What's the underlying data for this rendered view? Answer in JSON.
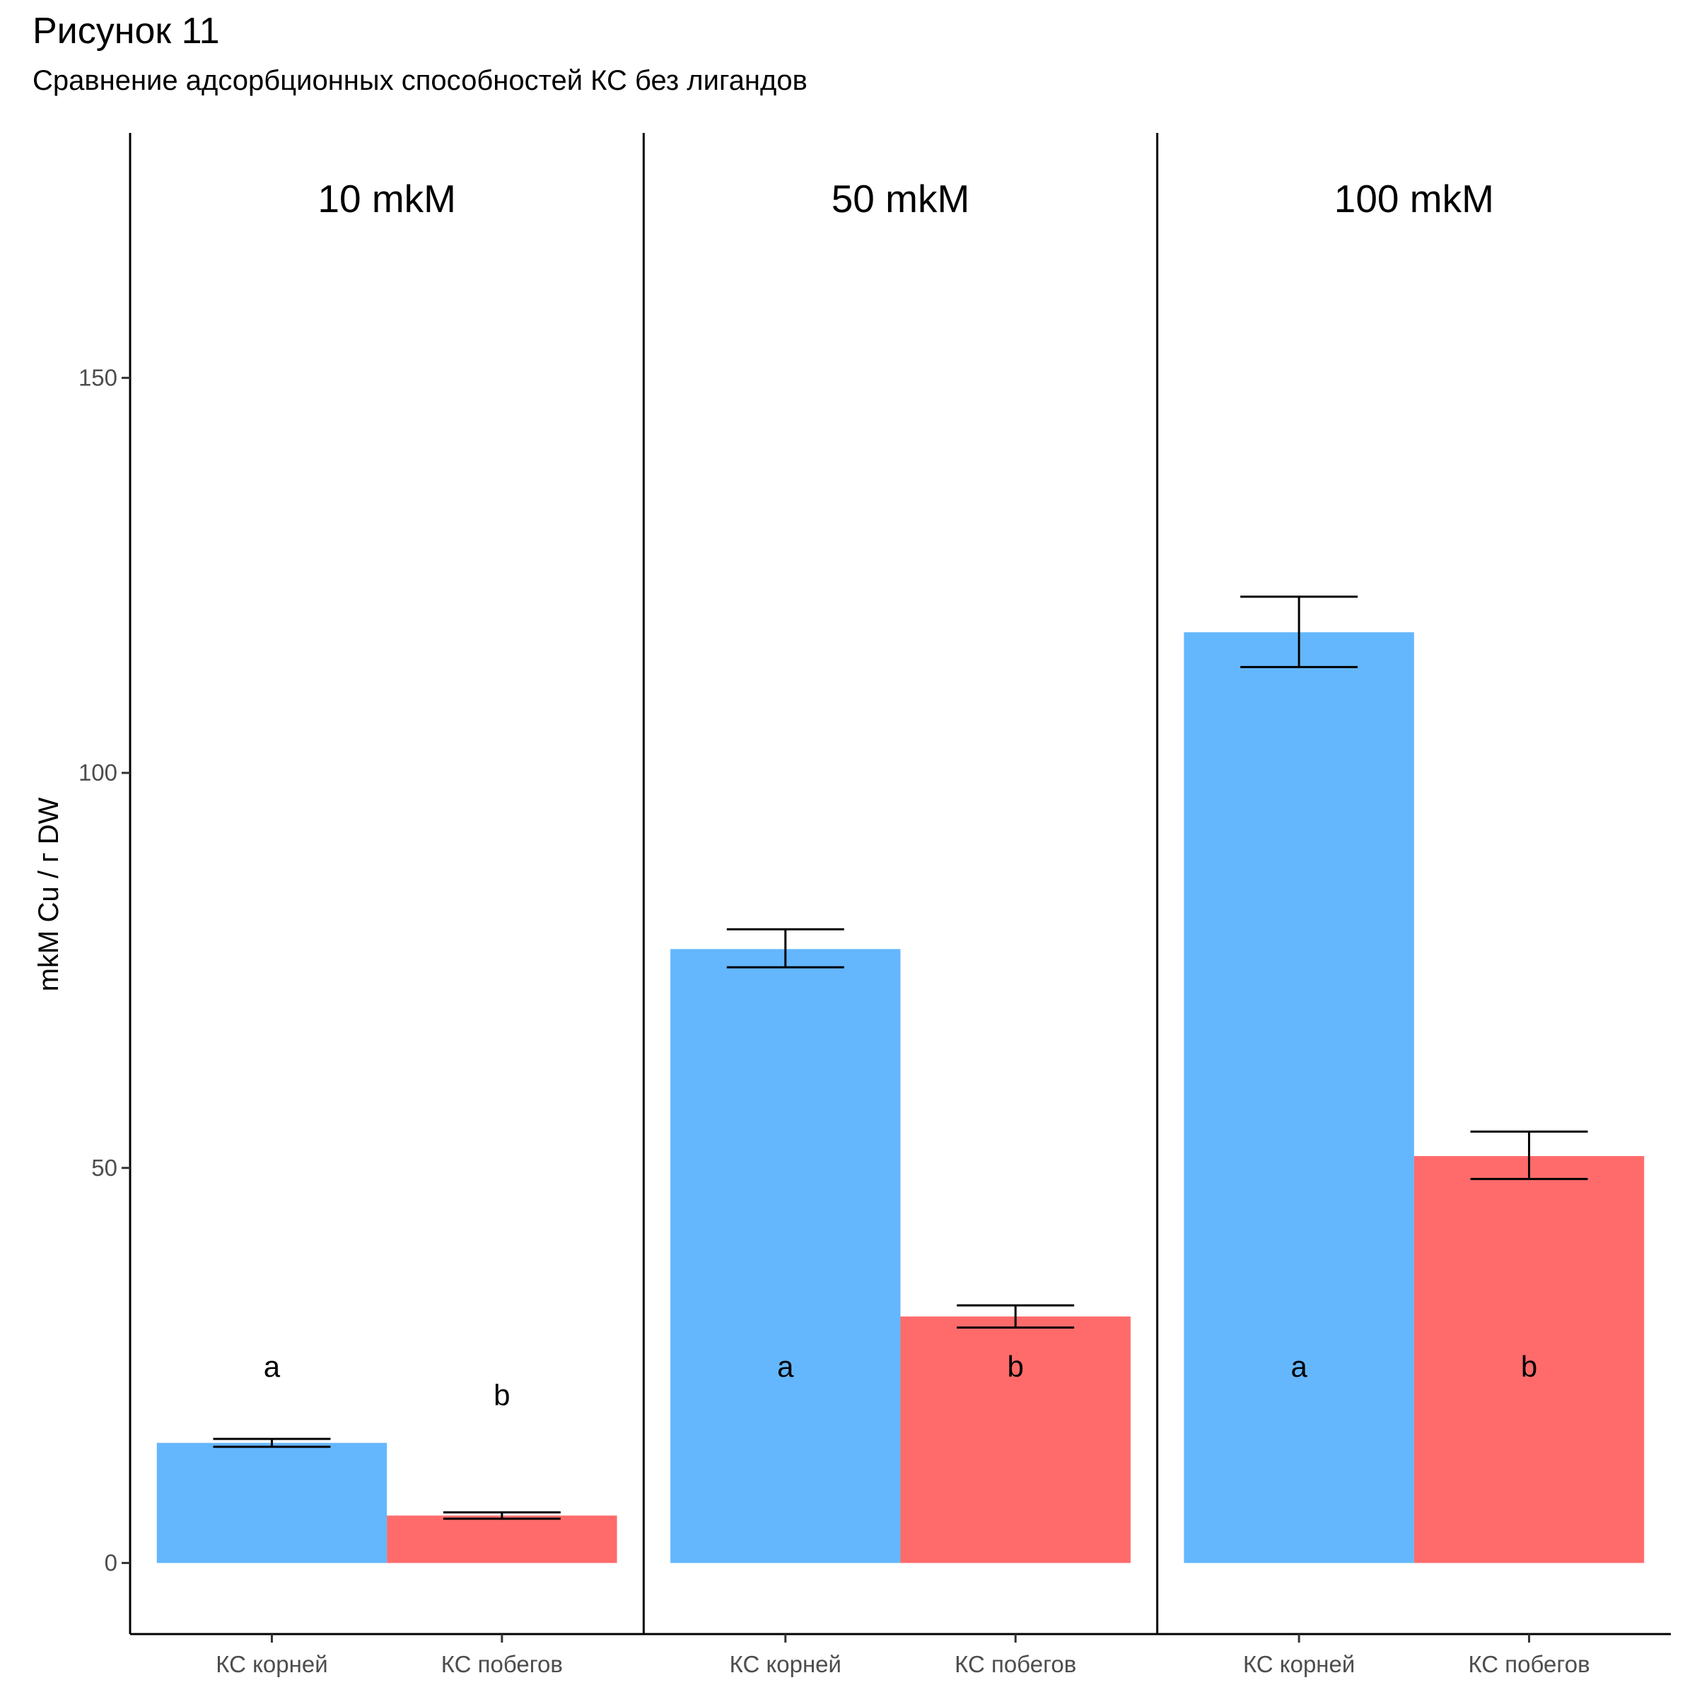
{
  "figure": {
    "title": "Рисунок 11",
    "subtitle": "Сравнение адсорбционных способностей КС без лигандов"
  },
  "chart_data": {
    "type": "bar",
    "ylabel": "mkM Cu / г DW",
    "xlabel": "",
    "ylim": [
      -9,
      181
    ],
    "yticks": [
      0,
      50,
      100,
      150
    ],
    "grid": false,
    "legend": "none",
    "categories": [
      "КС корней",
      "КС побегов"
    ],
    "colors": {
      "КС корней": "#64b7fd",
      "КС побегов": "#ff6b6b"
    },
    "panels": [
      {
        "label": "10 mkM",
        "bars": [
          {
            "category": "КС корней",
            "value": 15.2,
            "err_low": 14.7,
            "err_high": 15.7,
            "letter": "a"
          },
          {
            "category": "КС побегов",
            "value": 6.0,
            "err_low": 5.6,
            "err_high": 6.4,
            "letter": "b"
          }
        ]
      },
      {
        "label": "50 mkM",
        "bars": [
          {
            "category": "КС корней",
            "value": 77.7,
            "err_low": 75.4,
            "err_high": 80.2,
            "letter": "a"
          },
          {
            "category": "КС побегов",
            "value": 31.2,
            "err_low": 29.8,
            "err_high": 32.6,
            "letter": "b"
          }
        ]
      },
      {
        "label": "100 mkM",
        "bars": [
          {
            "category": "КС корней",
            "value": 117.8,
            "err_low": 113.4,
            "err_high": 122.3,
            "letter": "a"
          },
          {
            "category": "КС побегов",
            "value": 51.5,
            "err_low": 48.6,
            "err_high": 54.6,
            "letter": "b"
          }
        ]
      }
    ]
  }
}
